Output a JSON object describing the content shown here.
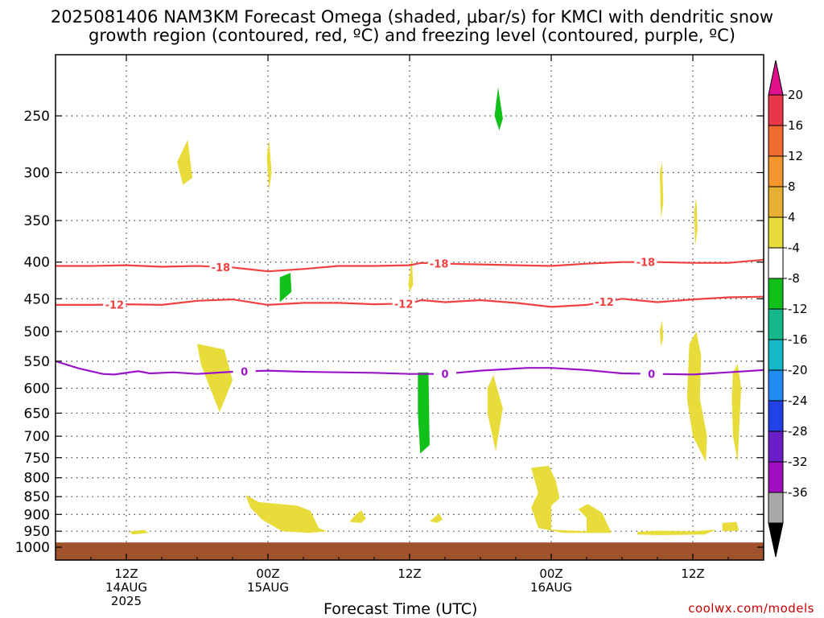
{
  "title_line1": "2025081406 NAM3KM Forecast Omega (shaded, μbar/s) for KMCI with dendritic snow",
  "title_line2": "growth region (contoured, red, ºC) and freezing level (contoured, purple, ºC)",
  "credit": "coolwx.com/models",
  "chart_data": {
    "type": "contour",
    "title": "2025081406 NAM3KM Forecast Omega (shaded, μbar/s) for KMCI with dendritic snow growth region (contoured, red, ºC) and freezing level (contoured, purple, ºC)",
    "xlabel": "Forecast Time (UTC)",
    "ylabel": "",
    "x_ticks": [
      {
        "label": "12Z",
        "sub1": "14AUG",
        "sub2": "2025",
        "hour": 6
      },
      {
        "label": "00Z",
        "sub1": "15AUG",
        "sub2": "",
        "hour": 18
      },
      {
        "label": "12Z",
        "sub1": "",
        "sub2": "",
        "hour": 30
      },
      {
        "label": "00Z",
        "sub1": "16AUG",
        "sub2": "",
        "hour": 42
      },
      {
        "label": "12Z",
        "sub1": "",
        "sub2": "",
        "hour": 54
      }
    ],
    "x_range_hours": [
      0,
      60
    ],
    "y_axis_pressure_hPa": [
      1000,
      950,
      900,
      850,
      800,
      750,
      700,
      650,
      600,
      550,
      500,
      450,
      400,
      350,
      300,
      250
    ],
    "colorbar": {
      "ticks": [
        20,
        16,
        12,
        8,
        4,
        -4,
        -8,
        -12,
        -16,
        -20,
        -24,
        -28,
        -32,
        -36
      ],
      "colors": [
        "#e8374a",
        "#f06b30",
        "#f5952e",
        "#e8b030",
        "#e8dc3a",
        "#ffffff",
        "#11c11a",
        "#14b88c",
        "#14b8c8",
        "#1e8cf0",
        "#2142e6",
        "#6a1dc8",
        "#a010c0",
        "#a8a8a8"
      ],
      "top_arrow_color": "#e0118a",
      "bottom_arrow_color": "#000000"
    },
    "contours": [
      {
        "name": "-18",
        "color": "#f04040",
        "labels_hour": [
          14,
          32.5,
          50
        ],
        "points": [
          [
            0,
            405
          ],
          [
            3,
            405
          ],
          [
            6,
            404
          ],
          [
            9,
            406
          ],
          [
            12,
            405
          ],
          [
            15,
            407
          ],
          [
            18,
            412
          ],
          [
            21,
            409
          ],
          [
            24,
            405
          ],
          [
            27,
            405
          ],
          [
            30,
            404
          ],
          [
            31,
            401
          ],
          [
            33,
            402
          ],
          [
            36,
            403
          ],
          [
            39,
            404
          ],
          [
            42,
            405
          ],
          [
            45,
            402
          ],
          [
            48,
            400
          ],
          [
            51,
            400
          ],
          [
            54,
            401
          ],
          [
            57,
            401
          ],
          [
            60,
            397
          ]
        ]
      },
      {
        "name": "-12",
        "color": "#f04040",
        "labels_hour": [
          5,
          29.5,
          46.5
        ],
        "points": [
          [
            0,
            459
          ],
          [
            3,
            459
          ],
          [
            6,
            458
          ],
          [
            9,
            459
          ],
          [
            12,
            453
          ],
          [
            15,
            451
          ],
          [
            18,
            459
          ],
          [
            21,
            456
          ],
          [
            24,
            456
          ],
          [
            27,
            458
          ],
          [
            30,
            457
          ],
          [
            31,
            452
          ],
          [
            33,
            455
          ],
          [
            36,
            452
          ],
          [
            39,
            456
          ],
          [
            42,
            462
          ],
          [
            45,
            459
          ],
          [
            48,
            450
          ],
          [
            51,
            455
          ],
          [
            54,
            451
          ],
          [
            57,
            448
          ],
          [
            60,
            447
          ]
        ]
      },
      {
        "name": "0",
        "color": "#9a14c8",
        "labels_hour": [
          16,
          33,
          50.5
        ],
        "points": [
          [
            0,
            550
          ],
          [
            2,
            563
          ],
          [
            4,
            573
          ],
          [
            5,
            574
          ],
          [
            7,
            568
          ],
          [
            8,
            572
          ],
          [
            10,
            570
          ],
          [
            12,
            573
          ],
          [
            15,
            569
          ],
          [
            18,
            567
          ],
          [
            21,
            569
          ],
          [
            24,
            570
          ],
          [
            27,
            571
          ],
          [
            30,
            573
          ],
          [
            33,
            573
          ],
          [
            36,
            567
          ],
          [
            40,
            562
          ],
          [
            42,
            562
          ],
          [
            45,
            566
          ],
          [
            48,
            572
          ],
          [
            51,
            573
          ],
          [
            54,
            574
          ],
          [
            57,
            570
          ],
          [
            60,
            566
          ]
        ]
      }
    ],
    "omega_regions": [
      {
        "value": 6,
        "color": "#e8dc3a",
        "pts": [
          [
            10.3,
            290
          ],
          [
            11.2,
            270
          ],
          [
            11.6,
            305
          ],
          [
            10.8,
            312
          ]
        ]
      },
      {
        "value": 6,
        "color": "#e8dc3a",
        "pts": [
          [
            17.9,
            285
          ],
          [
            18.1,
            270
          ],
          [
            18.3,
            300
          ],
          [
            18.1,
            318
          ]
        ]
      },
      {
        "value": -6,
        "color": "#11c11a",
        "pts": [
          [
            37.2,
            250
          ],
          [
            37.5,
            228
          ],
          [
            37.9,
            252
          ],
          [
            37.6,
            262
          ]
        ]
      },
      {
        "value": -6,
        "color": "#11c11a",
        "pts": [
          [
            19,
            420
          ],
          [
            19.9,
            414
          ],
          [
            20,
            440
          ],
          [
            19,
            455
          ]
        ]
      },
      {
        "value": 6,
        "color": "#e8dc3a",
        "pts": [
          [
            12,
            520
          ],
          [
            14.3,
            530
          ],
          [
            15,
            585
          ],
          [
            13.9,
            648
          ],
          [
            13.1,
            600
          ],
          [
            12.3,
            555
          ]
        ]
      },
      {
        "value": -6,
        "color": "#11c11a",
        "pts": [
          [
            30.7,
            570
          ],
          [
            31.6,
            570
          ],
          [
            31.7,
            720
          ],
          [
            30.9,
            740
          ],
          [
            30.7,
            650
          ]
        ]
      },
      {
        "value": 6,
        "color": "#e8dc3a",
        "pts": [
          [
            29.9,
            430
          ],
          [
            30.2,
            395
          ],
          [
            30.3,
            430
          ],
          [
            30,
            440
          ]
        ]
      },
      {
        "value": 6,
        "color": "#e8dc3a",
        "pts": [
          [
            36.6,
            600
          ],
          [
            37.1,
            575
          ],
          [
            37.9,
            640
          ],
          [
            37.3,
            735
          ],
          [
            36.6,
            650
          ]
        ]
      },
      {
        "value": 6,
        "color": "#e8dc3a",
        "pts": [
          [
            51.2,
            300
          ],
          [
            51.4,
            290
          ],
          [
            51.5,
            330
          ],
          [
            51.3,
            348
          ]
        ]
      },
      {
        "value": 6,
        "color": "#e8dc3a",
        "pts": [
          [
            54.1,
            340
          ],
          [
            54.3,
            325
          ],
          [
            54.4,
            360
          ],
          [
            54.2,
            380
          ]
        ]
      },
      {
        "value": 6,
        "color": "#e8dc3a",
        "pts": [
          [
            51.2,
            498
          ],
          [
            51.4,
            482
          ],
          [
            51.5,
            510
          ],
          [
            51.3,
            525
          ]
        ]
      },
      {
        "value": 6,
        "color": "#e8dc3a",
        "pts": [
          [
            53.7,
            520
          ],
          [
            54.3,
            500
          ],
          [
            54.7,
            540
          ],
          [
            54.6,
            620
          ],
          [
            55.2,
            700
          ],
          [
            55.1,
            760
          ],
          [
            54,
            700
          ],
          [
            53.5,
            620
          ]
        ]
      },
      {
        "value": 6,
        "color": "#e8dc3a",
        "pts": [
          [
            57.4,
            570
          ],
          [
            57.8,
            555
          ],
          [
            58.1,
            600
          ],
          [
            57.9,
            700
          ],
          [
            57.8,
            760
          ],
          [
            57.4,
            700
          ],
          [
            57.3,
            620
          ]
        ]
      },
      {
        "value": 6,
        "color": "#e8dc3a",
        "pts": [
          [
            16.1,
            845
          ],
          [
            17.2,
            865
          ],
          [
            20.5,
            875
          ],
          [
            21.6,
            890
          ],
          [
            22.3,
            940
          ],
          [
            23,
            950
          ],
          [
            21.4,
            955
          ],
          [
            19.2,
            950
          ],
          [
            17.5,
            915
          ],
          [
            16.5,
            880
          ]
        ]
      },
      {
        "value": 6,
        "color": "#e8dc3a",
        "pts": [
          [
            25.4,
            902
          ],
          [
            25.9,
            888
          ],
          [
            26.3,
            912
          ],
          [
            25.9,
            925
          ],
          [
            24.9,
            922
          ]
        ]
      },
      {
        "value": 6,
        "color": "#e8dc3a",
        "pts": [
          [
            32,
            912
          ],
          [
            32.5,
            897
          ],
          [
            32.8,
            915
          ],
          [
            32.3,
            925
          ],
          [
            31.7,
            920
          ]
        ]
      },
      {
        "value": 6,
        "color": "#e8dc3a",
        "pts": [
          [
            40.3,
            775
          ],
          [
            41.8,
            770
          ],
          [
            42.4,
            808
          ],
          [
            42.7,
            855
          ],
          [
            42,
            875
          ],
          [
            42,
            945
          ],
          [
            45,
            950
          ],
          [
            45,
            910
          ],
          [
            44.3,
            885
          ],
          [
            45.1,
            870
          ],
          [
            46.3,
            895
          ],
          [
            47.1,
            955
          ],
          [
            43,
            955
          ],
          [
            40.9,
            940
          ],
          [
            40.3,
            880
          ],
          [
            40.9,
            840
          ]
        ]
      },
      {
        "value": 6,
        "color": "#e8dc3a",
        "pts": [
          [
            56.5,
            925
          ],
          [
            57.7,
            922
          ],
          [
            57.9,
            948
          ],
          [
            56.5,
            950
          ]
        ]
      },
      {
        "value": 6,
        "color": "#e8dc3a",
        "pts": [
          [
            49.3,
            952
          ],
          [
            51,
            948
          ],
          [
            54,
            950
          ],
          [
            56,
            945
          ],
          [
            55,
            960
          ],
          [
            51,
            962
          ],
          [
            49.3,
            960
          ]
        ]
      },
      {
        "value": 6,
        "color": "#e8dc3a",
        "pts": [
          [
            6.3,
            950
          ],
          [
            7.5,
            946
          ],
          [
            7.9,
            955
          ],
          [
            6.5,
            960
          ]
        ]
      }
    ],
    "terrain_color": "#a0522d"
  }
}
